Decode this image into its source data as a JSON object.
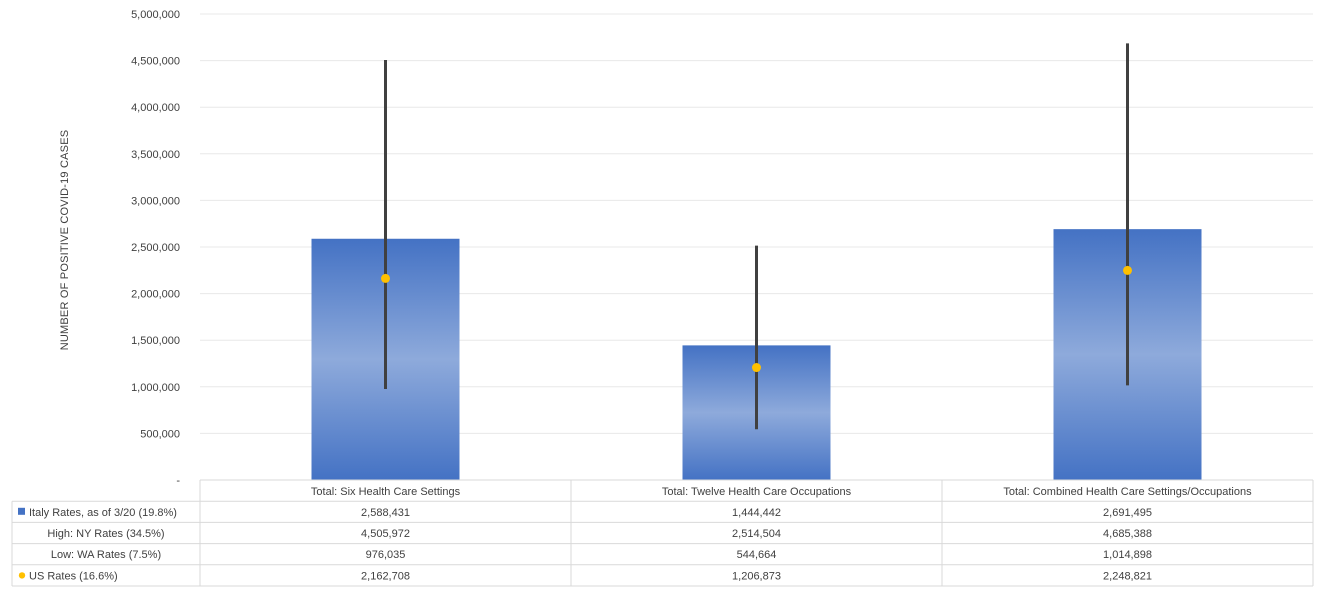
{
  "chart_data": {
    "type": "bar",
    "title": "",
    "xlabel": "",
    "ylabel": "NUMBER OF POSITIVE COVID-19 CASES",
    "ylim": [
      0,
      5000000
    ],
    "yticks": [
      "-",
      "500,000",
      "1,000,000",
      "1,500,000",
      "2,000,000",
      "2,500,000",
      "3,000,000",
      "3,500,000",
      "4,000,000",
      "4,500,000",
      "5,000,000"
    ],
    "grid": true,
    "legend": "data-table",
    "categories": [
      "Total: Six Health Care Settings",
      "Total: Twelve Health Care Occupations",
      "Total: Combined Health Care Settings/Occupations"
    ],
    "series": [
      {
        "name": "Italy Rates, as of 3/20 (19.8%)",
        "marker": "bar",
        "values": [
          2588431,
          1444442,
          2691495
        ],
        "labels": [
          "2,588,431",
          "1,444,442",
          "2,691,495"
        ]
      },
      {
        "name": "High: NY Rates (34.5%)",
        "marker": "error-bar-high",
        "values": [
          4505972,
          2514504,
          4685388
        ],
        "labels": [
          "4,505,972",
          "2,514,504",
          "4,685,388"
        ]
      },
      {
        "name": "Low: WA Rates (7.5%)",
        "marker": "error-bar-low",
        "values": [
          976035,
          544664,
          1014898
        ],
        "labels": [
          "976,035",
          "544,664",
          "1,014,898"
        ]
      },
      {
        "name": "US Rates (16.6%)",
        "marker": "point",
        "values": [
          2162708,
          1206873,
          2248821
        ],
        "labels": [
          "2,162,708",
          "1,206,873",
          "2,248,821"
        ]
      }
    ],
    "colors": {
      "bar_dark": "#4472c4",
      "bar_light": "#8eaadb",
      "point": "#ffc000",
      "error_bar": "#404040",
      "grid": "#e8e8e8",
      "table_border": "#d9d9d9"
    }
  }
}
